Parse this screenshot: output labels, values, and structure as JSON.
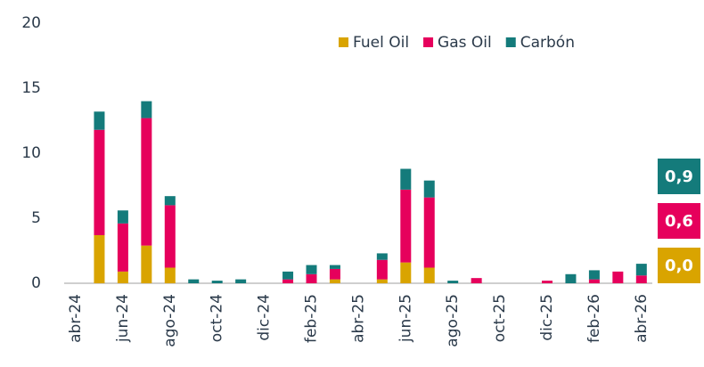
{
  "chart_data": {
    "type": "stacked_bar",
    "categories": [
      "abr-24",
      null,
      "jun-24",
      null,
      "ago-24",
      null,
      "oct-24",
      null,
      "dic-24",
      null,
      "feb-25",
      null,
      "abr-25",
      null,
      "jun-25",
      null,
      "ago-25",
      null,
      "oct-25",
      null,
      "dic-25",
      null,
      "feb-26",
      null,
      "abr-26"
    ],
    "series": [
      {
        "name": "Fuel Oil",
        "color": "#d9a400",
        "values": [
          0,
          3.7,
          0.9,
          2.9,
          1.2,
          0,
          0,
          0,
          0,
          0,
          0,
          0.3,
          0,
          0.3,
          1.6,
          1.2,
          0,
          0,
          0,
          0,
          0,
          0,
          0,
          0,
          0.0
        ],
        "value_labels": [
          null,
          null,
          null,
          null,
          null,
          null,
          null,
          null,
          null,
          null,
          null,
          null,
          null,
          null,
          null,
          null,
          null,
          null,
          null,
          null,
          null,
          null,
          null,
          null,
          "0,0"
        ]
      },
      {
        "name": "Gas Oil",
        "color": "#e6005c",
        "values": [
          0,
          8.1,
          3.7,
          9.8,
          4.8,
          0,
          0,
          0,
          0,
          0.3,
          0.7,
          0.8,
          0,
          1.5,
          5.6,
          5.4,
          0,
          0.4,
          0,
          0,
          0.2,
          0,
          0.3,
          0.9,
          0.6
        ],
        "value_labels": [
          null,
          null,
          null,
          null,
          null,
          null,
          null,
          null,
          null,
          null,
          null,
          null,
          null,
          null,
          null,
          null,
          null,
          null,
          null,
          null,
          null,
          null,
          null,
          null,
          "0,6"
        ]
      },
      {
        "name": "Carbón",
        "color": "#147b7b",
        "values": [
          0,
          1.4,
          1.0,
          1.3,
          0.7,
          0.3,
          0.2,
          0.3,
          0,
          0.6,
          0.7,
          0.3,
          0,
          0.5,
          1.6,
          1.3,
          0.2,
          0,
          0,
          0,
          0,
          0.7,
          0.7,
          0,
          0.9
        ],
        "value_labels": [
          null,
          null,
          null,
          null,
          null,
          null,
          null,
          null,
          null,
          null,
          null,
          null,
          null,
          null,
          null,
          null,
          null,
          null,
          null,
          null,
          null,
          null,
          null,
          null,
          "0,9"
        ]
      }
    ],
    "ylim": [
      0,
      20
    ],
    "yticks": [
      0,
      5,
      10,
      15,
      20
    ],
    "grid": false,
    "legend": "top-right"
  }
}
